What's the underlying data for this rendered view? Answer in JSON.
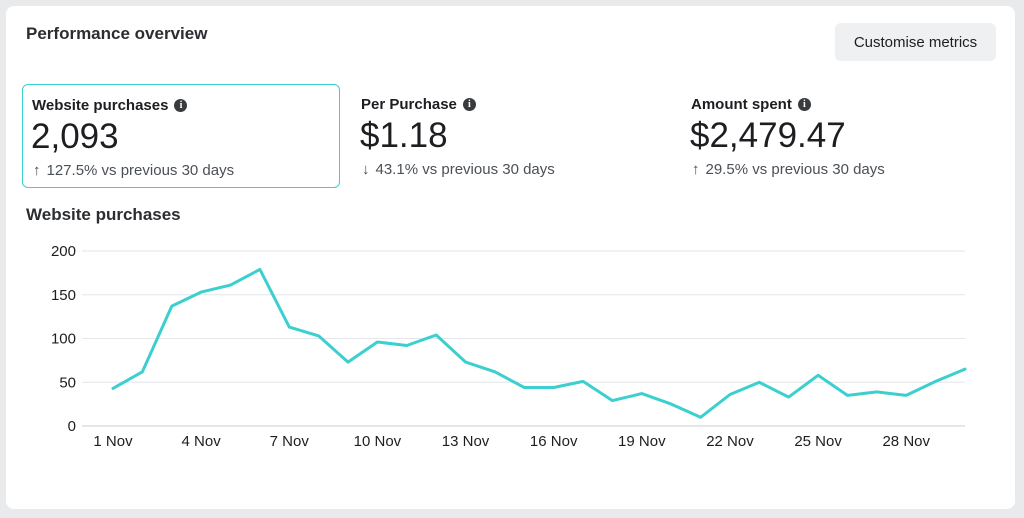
{
  "header": {
    "title": "Performance overview",
    "customise_label": "Customise metrics"
  },
  "metrics": [
    {
      "label": "Website purchases",
      "value": "2,093",
      "arrow": "↑",
      "change": "127.5% vs previous 30 days",
      "selected": true
    },
    {
      "label": "Per Purchase",
      "value": "$1.18",
      "arrow": "↓",
      "change": "43.1% vs previous 30 days",
      "selected": false
    },
    {
      "label": "Amount spent",
      "value": "$2,479.47",
      "arrow": "↑",
      "change": "29.5% vs previous 30 days",
      "selected": false
    }
  ],
  "icons": {
    "info": "info-icon",
    "up": "arrow-up-icon",
    "down": "arrow-down-icon"
  },
  "colors": {
    "accent": "#3ccfd0",
    "grid": "#e4e6eb",
    "text": "#1c1e21"
  },
  "chart_data": {
    "type": "line",
    "title": "Website purchases",
    "xlabel": "",
    "ylabel": "",
    "ylim": [
      0,
      200
    ],
    "yticks": [
      0,
      50,
      100,
      150,
      200
    ],
    "x": [
      "1 Nov",
      "2 Nov",
      "3 Nov",
      "4 Nov",
      "5 Nov",
      "6 Nov",
      "7 Nov",
      "8 Nov",
      "9 Nov",
      "10 Nov",
      "11 Nov",
      "12 Nov",
      "13 Nov",
      "14 Nov",
      "15 Nov",
      "16 Nov",
      "17 Nov",
      "18 Nov",
      "19 Nov",
      "20 Nov",
      "21 Nov",
      "22 Nov",
      "23 Nov",
      "24 Nov",
      "25 Nov",
      "26 Nov",
      "27 Nov",
      "28 Nov",
      "29 Nov",
      "30 Nov"
    ],
    "xtick_labels": [
      "1 Nov",
      "4 Nov",
      "7 Nov",
      "10 Nov",
      "13 Nov",
      "16 Nov",
      "19 Nov",
      "22 Nov",
      "25 Nov",
      "28 Nov"
    ],
    "series": [
      {
        "values": [
          43,
          62,
          137,
          153,
          161,
          179,
          113,
          103,
          73,
          96,
          92,
          104,
          73,
          62,
          44,
          44,
          51,
          29,
          37,
          25,
          10,
          36,
          50,
          33,
          58,
          35,
          39,
          35,
          51,
          65
        ]
      }
    ],
    "grid": true,
    "legend": "none"
  }
}
